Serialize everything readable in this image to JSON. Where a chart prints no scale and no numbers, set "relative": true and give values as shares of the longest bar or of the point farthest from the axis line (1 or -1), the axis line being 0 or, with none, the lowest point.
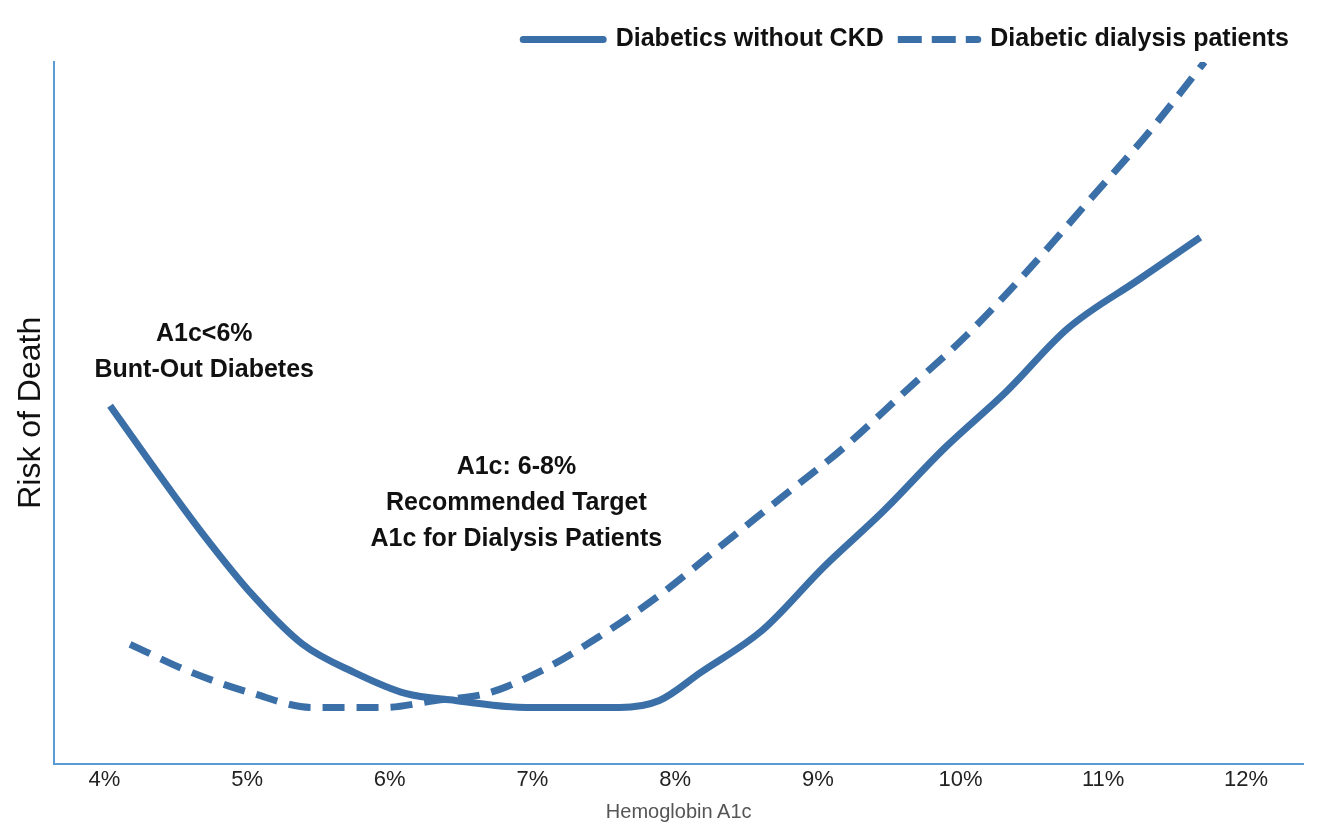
{
  "chart_data": {
    "type": "line",
    "relative": true,
    "xlabel": "Hemoglobin A1c",
    "ylabel": "Risk of Death",
    "legend": "top right",
    "grid": false,
    "marker": "none",
    "xlim": [
      3.65,
      12.4
    ],
    "xticks": [
      {
        "value": 4,
        "label": "4%"
      },
      {
        "value": 5,
        "label": "5%"
      },
      {
        "value": 6,
        "label": "6%"
      },
      {
        "value": 7,
        "label": "7%"
      },
      {
        "value": 8,
        "label": "8%"
      },
      {
        "value": 9,
        "label": "9%"
      },
      {
        "value": 10,
        "label": "10%"
      },
      {
        "value": 11,
        "label": "11%"
      },
      {
        "value": 12,
        "label": "12%"
      }
    ],
    "series": [
      {
        "name": "Diabetics without CKD",
        "color": "#3b6fa8",
        "line_style": "solid",
        "x": [
          4.04,
          4.32,
          4.68,
          5.04,
          5.39,
          5.75,
          6.11,
          6.46,
          6.96,
          7.32,
          7.61,
          7.89,
          8.18,
          8.61,
          9.04,
          9.46,
          9.89,
          10.32,
          10.75,
          11.25,
          11.68
        ],
        "values": [
          0.51,
          0.43,
          0.33,
          0.24,
          0.17,
          0.13,
          0.1,
          0.09,
          0.08,
          0.08,
          0.08,
          0.09,
          0.13,
          0.19,
          0.28,
          0.36,
          0.45,
          0.53,
          0.62,
          0.69,
          0.75
        ]
      },
      {
        "name": "Diabetic dialysis patients",
        "color": "#3b6fa8",
        "line_style": "dashed",
        "x": [
          4.18,
          4.61,
          5.04,
          5.46,
          5.96,
          6.32,
          6.68,
          7.04,
          7.46,
          7.89,
          8.32,
          8.75,
          9.18,
          9.61,
          10.04,
          10.46,
          10.89,
          11.32,
          11.71
        ],
        "values": [
          0.17,
          0.13,
          0.1,
          0.08,
          0.08,
          0.09,
          0.1,
          0.13,
          0.18,
          0.24,
          0.31,
          0.38,
          0.45,
          0.53,
          0.61,
          0.7,
          0.8,
          0.9,
          1.0
        ]
      }
    ],
    "annotations": [
      "A1c<6%\nBunt-Out Diabetes",
      "A1c: 6-8%\nRecommended Target\nA1c for Dialysis Patients"
    ]
  }
}
